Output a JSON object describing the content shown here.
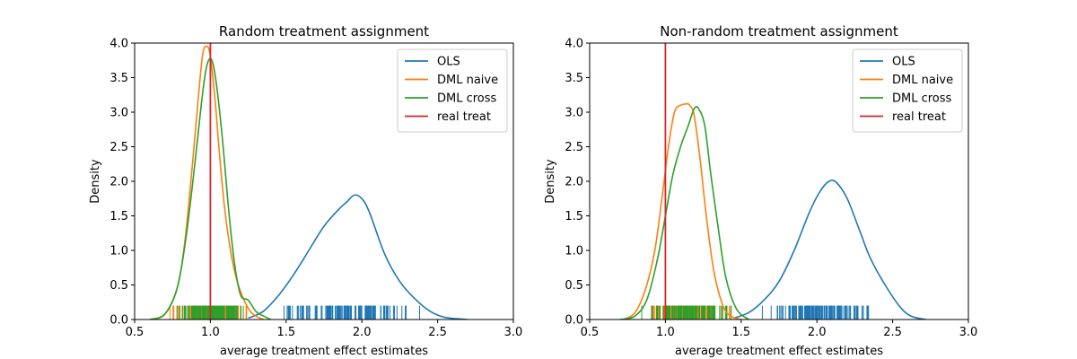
{
  "chart_data": [
    {
      "type": "line",
      "title": "Random treatment assignment",
      "xlabel": "average treatment effect estimates",
      "ylabel": "Density",
      "xlim": [
        0.5,
        3.0
      ],
      "ylim": [
        0.0,
        4.0
      ],
      "xticks": [
        "0.5",
        "1.0",
        "1.5",
        "2.0",
        "2.5",
        "3.0"
      ],
      "yticks": [
        "0.0",
        "0.5",
        "1.0",
        "1.5",
        "2.0",
        "2.5",
        "3.0",
        "3.5",
        "4.0"
      ],
      "legend_position": "top-right",
      "reference_line": {
        "name": "real treat",
        "x": 1.0,
        "color": "#d62728"
      },
      "series": [
        {
          "name": "OLS",
          "color": "#1f77b4",
          "x": [
            1.25,
            1.35,
            1.45,
            1.55,
            1.65,
            1.75,
            1.85,
            1.9,
            1.95,
            2.0,
            2.05,
            2.15,
            2.25,
            2.35,
            2.45,
            2.55,
            2.7
          ],
          "y": [
            0.02,
            0.12,
            0.35,
            0.65,
            1.0,
            1.35,
            1.6,
            1.7,
            1.8,
            1.75,
            1.55,
            0.95,
            0.55,
            0.3,
            0.12,
            0.03,
            0.0
          ],
          "rug_range": [
            1.35,
            2.5
          ]
        },
        {
          "name": "DML naive",
          "color": "#ff7f0e",
          "x": [
            0.62,
            0.7,
            0.78,
            0.83,
            0.88,
            0.92,
            0.95,
            0.98,
            1.0,
            1.03,
            1.06,
            1.1,
            1.15,
            1.2,
            1.27,
            1.35
          ],
          "y": [
            0.0,
            0.08,
            0.45,
            1.1,
            2.2,
            3.2,
            3.85,
            3.95,
            3.8,
            3.2,
            2.4,
            1.5,
            0.8,
            0.4,
            0.1,
            0.0
          ],
          "rug_range": [
            0.68,
            1.3
          ]
        },
        {
          "name": "DML cross",
          "color": "#2ca02c",
          "x": [
            0.6,
            0.7,
            0.78,
            0.84,
            0.9,
            0.95,
            0.98,
            1.01,
            1.04,
            1.08,
            1.12,
            1.16,
            1.2,
            1.25,
            1.3,
            1.35,
            1.4
          ],
          "y": [
            0.0,
            0.08,
            0.45,
            1.2,
            2.3,
            3.3,
            3.7,
            3.75,
            3.4,
            2.6,
            1.6,
            0.8,
            0.35,
            0.28,
            0.12,
            0.05,
            0.0
          ],
          "rug_range": [
            0.72,
            1.3
          ]
        }
      ]
    },
    {
      "type": "line",
      "title": "Non-random treatment assignment",
      "xlabel": "average treatment effect estimates",
      "ylabel": "Density",
      "xlim": [
        0.5,
        3.0
      ],
      "ylim": [
        0.0,
        4.0
      ],
      "xticks": [
        "0.5",
        "1.0",
        "1.5",
        "2.0",
        "2.5",
        "3.0"
      ],
      "yticks": [
        "0.0",
        "0.5",
        "1.0",
        "1.5",
        "2.0",
        "2.5",
        "3.0",
        "3.5",
        "4.0"
      ],
      "legend_position": "top-right",
      "reference_line": {
        "name": "real treat",
        "x": 1.0,
        "color": "#d62728"
      },
      "series": [
        {
          "name": "OLS",
          "color": "#1f77b4",
          "x": [
            1.45,
            1.55,
            1.65,
            1.75,
            1.85,
            1.95,
            2.02,
            2.08,
            2.13,
            2.2,
            2.28,
            2.35,
            2.45,
            2.55,
            2.62,
            2.72
          ],
          "y": [
            0.02,
            0.1,
            0.28,
            0.55,
            1.0,
            1.55,
            1.85,
            2.0,
            1.98,
            1.75,
            1.3,
            0.9,
            0.5,
            0.18,
            0.05,
            0.0
          ],
          "rug_range": [
            1.5,
            2.55
          ]
        },
        {
          "name": "DML naive",
          "color": "#ff7f0e",
          "x": [
            0.72,
            0.8,
            0.87,
            0.93,
            0.98,
            1.02,
            1.06,
            1.1,
            1.14,
            1.16,
            1.19,
            1.23,
            1.27,
            1.32,
            1.38,
            1.43,
            1.5
          ],
          "y": [
            0.0,
            0.1,
            0.45,
            1.0,
            1.8,
            2.5,
            3.0,
            3.1,
            3.12,
            3.1,
            2.95,
            2.3,
            1.5,
            0.7,
            0.2,
            0.05,
            0.0
          ],
          "rug_range": [
            0.8,
            1.5
          ]
        },
        {
          "name": "DML cross",
          "color": "#2ca02c",
          "x": [
            0.7,
            0.8,
            0.88,
            0.95,
            1.0,
            1.05,
            1.1,
            1.15,
            1.19,
            1.22,
            1.26,
            1.3,
            1.35,
            1.4,
            1.47,
            1.55
          ],
          "y": [
            0.0,
            0.05,
            0.3,
            0.9,
            1.5,
            2.1,
            2.5,
            2.8,
            3.05,
            3.05,
            2.8,
            2.1,
            1.3,
            0.6,
            0.15,
            0.0
          ],
          "rug_range": [
            0.8,
            1.5
          ]
        }
      ]
    }
  ]
}
